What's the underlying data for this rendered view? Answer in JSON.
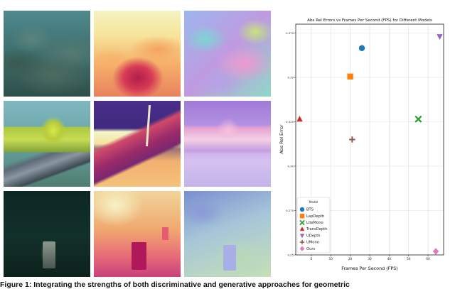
{
  "figure": {
    "caption": "Figure 1: Integrating the strengths of both discriminative and generative approaches for geometric"
  },
  "image_grid": {
    "rows": [
      {
        "name": "row-coral"
      },
      {
        "name": "row-pipe"
      },
      {
        "name": "row-dark"
      }
    ],
    "columns": [
      "rgb",
      "depth",
      "normal"
    ]
  },
  "chart_data": {
    "type": "scatter",
    "title": "Abs Rel Errors vs Frames Per Second (FPS) for Different Models",
    "xlabel": "Frames Per Second (FPS)",
    "ylabel": "Abs Rel Error",
    "xlim": [
      -8,
      68
    ],
    "ylim": [
      0.25,
      0.38
    ],
    "x_ticks": [
      {
        "v": 0,
        "label": "0"
      },
      {
        "v": 10,
        "label": "10"
      },
      {
        "v": 20,
        "label": "20"
      },
      {
        "v": 30,
        "label": "30"
      },
      {
        "v": 40,
        "label": "40"
      },
      {
        "v": 50,
        "label": "50"
      },
      {
        "v": 60,
        "label": "60"
      }
    ],
    "y_ticks": [
      {
        "v": 0.25,
        "label": "0.25"
      },
      {
        "v": 0.275,
        "label": "0.275"
      },
      {
        "v": 0.3,
        "label": "0.30"
      },
      {
        "v": 0.325,
        "label": "0.325"
      },
      {
        "v": 0.35,
        "label": "0.35"
      },
      {
        "v": 0.375,
        "label": "0.375"
      }
    ],
    "grid": true,
    "legend_title": "Model",
    "legend_position": "lower-left",
    "series": [
      {
        "name": "BTS",
        "marker": "circle",
        "color": "#1f77b4",
        "x": 26,
        "y": 0.3665
      },
      {
        "name": "LapDepth",
        "marker": "square",
        "color": "#ff7f0e",
        "x": 20,
        "y": 0.3505
      },
      {
        "name": "LiteMono",
        "marker": "x",
        "color": "#2ca02c",
        "x": 55,
        "y": 0.3265
      },
      {
        "name": "TransDepth",
        "marker": "triangle-up",
        "color": "#d62728",
        "x": -6,
        "y": 0.3265
      },
      {
        "name": "UDepth",
        "marker": "triangle-down",
        "color": "#9467bd",
        "x": 66,
        "y": 0.373
      },
      {
        "name": "UMono",
        "marker": "plus",
        "color": "#8c564b",
        "x": 21,
        "y": 0.315
      },
      {
        "name": "Ours",
        "marker": "diamond",
        "color": "#e377c2",
        "x": 64,
        "y": 0.252
      }
    ]
  }
}
